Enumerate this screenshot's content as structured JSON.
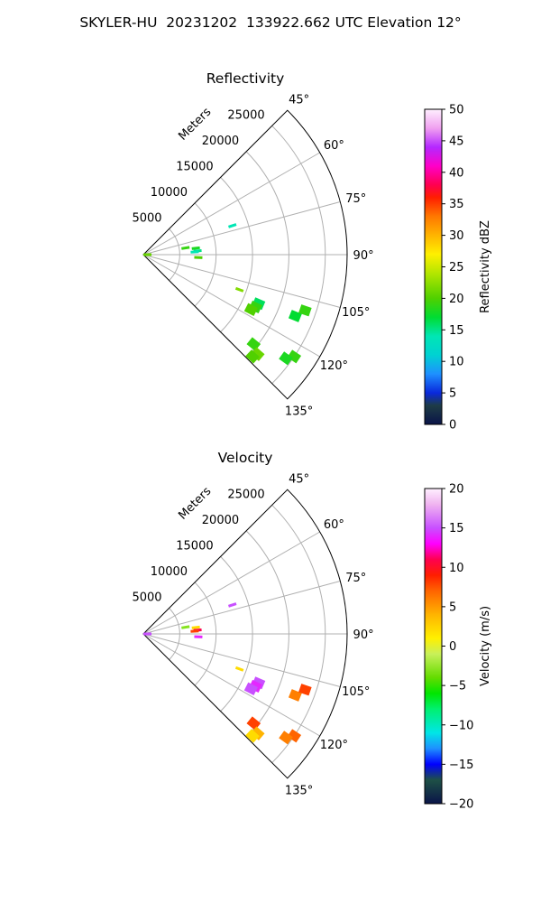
{
  "figure_title": "SKYLER-HU  20231202  133922.662 UTC Elevation 12°",
  "chart_data": [
    {
      "type": "polar-sector",
      "title": "Reflectivity",
      "radial_label": "Meters",
      "radial_ticks": [
        5000,
        10000,
        15000,
        20000,
        25000
      ],
      "radial_max": 28000,
      "angle_ticks": [
        45,
        60,
        75,
        90,
        105,
        120,
        135
      ],
      "angle_tick_labels": [
        "45°",
        "60°",
        "75°",
        "90°",
        "105°",
        "120°",
        "135°"
      ],
      "angle_range": [
        45,
        135
      ],
      "grid": true,
      "colorbar": {
        "label": "Reflectivity dBZ",
        "min": 0,
        "max": 50,
        "ticks": [
          0,
          5,
          10,
          15,
          20,
          25,
          30,
          35,
          40,
          45,
          50
        ],
        "tick_labels": [
          "0",
          "5",
          "10",
          "15",
          "20",
          "25",
          "30",
          "35",
          "40",
          "45",
          "50"
        ]
      },
      "echoes": [
        {
          "azimuth": 81,
          "range": 5800,
          "value": 19
        },
        {
          "azimuth": 83,
          "range": 7200,
          "value": 18
        },
        {
          "azimuth": 86,
          "range": 7400,
          "value": 15
        },
        {
          "azimuth": 87,
          "range": 7000,
          "value": 14
        },
        {
          "azimuth": 93,
          "range": 7500,
          "value": 20
        },
        {
          "azimuth": 90,
          "range": 500,
          "value": 21
        },
        {
          "azimuth": 72,
          "range": 12800,
          "value": 14
        },
        {
          "azimuth": 113,
          "range": 17200,
          "value": 16
        },
        {
          "azimuth": 115,
          "range": 17000,
          "value": 19
        },
        {
          "azimuth": 117,
          "range": 16600,
          "value": 20
        },
        {
          "azimuth": 110,
          "range": 14000,
          "value": 22
        },
        {
          "azimuth": 112,
          "range": 22500,
          "value": 17
        },
        {
          "azimuth": 109,
          "range": 23500,
          "value": 19
        },
        {
          "azimuth": 124,
          "range": 25000,
          "value": 19
        },
        {
          "azimuth": 126,
          "range": 24200,
          "value": 18
        },
        {
          "azimuth": 129,
          "range": 19500,
          "value": 19
        },
        {
          "azimuth": 131,
          "range": 20800,
          "value": 21
        },
        {
          "azimuth": 133,
          "range": 20500,
          "value": 20
        }
      ]
    },
    {
      "type": "polar-sector",
      "title": "Velocity",
      "radial_label": "Meters",
      "radial_ticks": [
        5000,
        10000,
        15000,
        20000,
        25000
      ],
      "radial_max": 28000,
      "angle_ticks": [
        45,
        60,
        75,
        90,
        105,
        120,
        135
      ],
      "angle_tick_labels": [
        "45°",
        "60°",
        "75°",
        "90°",
        "105°",
        "120°",
        "135°"
      ],
      "angle_range": [
        45,
        135
      ],
      "grid": true,
      "colorbar": {
        "label": "Velocity (m/s)",
        "min": -20,
        "max": 20,
        "ticks": [
          -20,
          -15,
          -10,
          -5,
          0,
          5,
          10,
          15,
          20
        ],
        "tick_labels": [
          "−20",
          "−15",
          "−10",
          "−5",
          "0",
          "5",
          "10",
          "15",
          "20"
        ]
      },
      "echoes": [
        {
          "azimuth": 81,
          "range": 5800,
          "value": -3
        },
        {
          "azimuth": 83,
          "range": 7200,
          "value": 2
        },
        {
          "azimuth": 86,
          "range": 7400,
          "value": 11
        },
        {
          "azimuth": 87,
          "range": 7000,
          "value": 8
        },
        {
          "azimuth": 93,
          "range": 7500,
          "value": 14
        },
        {
          "azimuth": 90,
          "range": 500,
          "value": 15
        },
        {
          "azimuth": 72,
          "range": 12800,
          "value": 15
        },
        {
          "azimuth": 113,
          "range": 17200,
          "value": 15
        },
        {
          "azimuth": 115,
          "range": 17000,
          "value": 14
        },
        {
          "azimuth": 117,
          "range": 16600,
          "value": 15
        },
        {
          "azimuth": 110,
          "range": 14000,
          "value": 2
        },
        {
          "azimuth": 112,
          "range": 22500,
          "value": 6
        },
        {
          "azimuth": 109,
          "range": 23500,
          "value": 8
        },
        {
          "azimuth": 124,
          "range": 25000,
          "value": 7
        },
        {
          "azimuth": 126,
          "range": 24200,
          "value": 6
        },
        {
          "azimuth": 129,
          "range": 19500,
          "value": 8
        },
        {
          "azimuth": 131,
          "range": 20800,
          "value": 4
        },
        {
          "azimuth": 133,
          "range": 20500,
          "value": 2
        }
      ]
    }
  ]
}
